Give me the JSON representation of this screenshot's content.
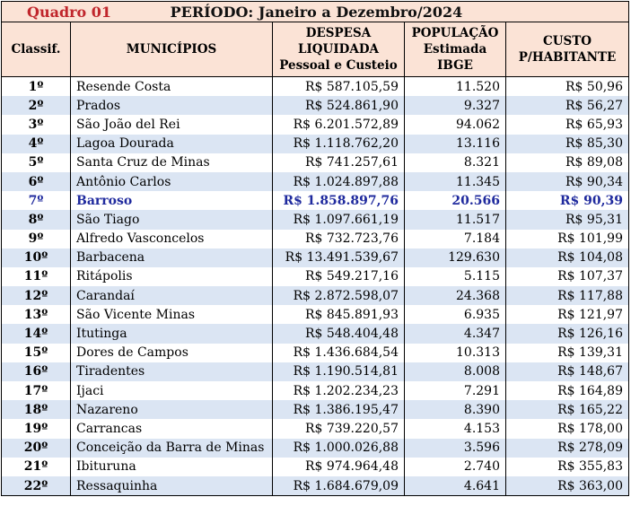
{
  "title": {
    "label": "Quadro 01",
    "period": "PERÍODO: Janeiro a Dezembro/2024"
  },
  "headers": {
    "rank": "Classif.",
    "municipality": "MUNICÍPIOS",
    "expense": [
      "DESPESA",
      "LIQUIDADA",
      "Pessoal e Custeio"
    ],
    "population": [
      "POPULAÇÃO",
      "Estimada",
      "IBGE"
    ],
    "cost": [
      "CUSTO",
      "P/HABITANTE"
    ]
  },
  "highlight_color": "#1f2a9e",
  "rows": [
    {
      "rank": "1º",
      "name": "Resende Costa",
      "expense": "R$ 587.105,59",
      "population": "11.520",
      "cost": "R$ 50,96"
    },
    {
      "rank": "2º",
      "name": "Prados",
      "expense": "R$ 524.861,90",
      "population": "9.327",
      "cost": "R$ 56,27"
    },
    {
      "rank": "3º",
      "name": "São João del Rei",
      "expense": "R$ 6.201.572,89",
      "population": "94.062",
      "cost": "R$ 65,93"
    },
    {
      "rank": "4º",
      "name": "Lagoa Dourada",
      "expense": "R$ 1.118.762,20",
      "population": "13.116",
      "cost": "R$ 85,30"
    },
    {
      "rank": "5º",
      "name": "Santa Cruz de Minas",
      "expense": "R$ 741.257,61",
      "population": "8.321",
      "cost": "R$ 89,08"
    },
    {
      "rank": "6º",
      "name": "Antônio Carlos",
      "expense": "R$ 1.024.897,88",
      "population": "11.345",
      "cost": "R$ 90,34"
    },
    {
      "rank": "7º",
      "name": "Barroso",
      "expense": "R$ 1.858.897,76",
      "population": "20.566",
      "cost": "R$ 90,39",
      "highlight": true
    },
    {
      "rank": "8º",
      "name": "São Tiago",
      "expense": "R$ 1.097.661,19",
      "population": "11.517",
      "cost": "R$ 95,31"
    },
    {
      "rank": "9º",
      "name": "Alfredo Vasconcelos",
      "expense": "R$ 732.723,76",
      "population": "7.184",
      "cost": "R$ 101,99"
    },
    {
      "rank": "10º",
      "name": "Barbacena",
      "expense": "R$ 13.491.539,67",
      "population": "129.630",
      "cost": "R$ 104,08"
    },
    {
      "rank": "11º",
      "name": "Ritápolis",
      "expense": "R$ 549.217,16",
      "population": "5.115",
      "cost": "R$ 107,37"
    },
    {
      "rank": "12º",
      "name": "Carandaí",
      "expense": "R$ 2.872.598,07",
      "population": "24.368",
      "cost": "R$ 117,88"
    },
    {
      "rank": "13º",
      "name": "São Vicente Minas",
      "expense": "R$ 845.891,93",
      "population": "6.935",
      "cost": "R$ 121,97"
    },
    {
      "rank": "14º",
      "name": "Itutinga",
      "expense": "R$ 548.404,48",
      "population": "4.347",
      "cost": "R$ 126,16"
    },
    {
      "rank": "15º",
      "name": "Dores de Campos",
      "expense": "R$ 1.436.684,54",
      "population": "10.313",
      "cost": "R$ 139,31"
    },
    {
      "rank": "16º",
      "name": "Tiradentes",
      "expense": "R$ 1.190.514,81",
      "population": "8.008",
      "cost": "R$ 148,67"
    },
    {
      "rank": "17º",
      "name": "Ijaci",
      "expense": "R$ 1.202.234,23",
      "population": "7.291",
      "cost": "R$ 164,89"
    },
    {
      "rank": "18º",
      "name": "Nazareno",
      "expense": "R$ 1.386.195,47",
      "population": "8.390",
      "cost": "R$ 165,22"
    },
    {
      "rank": "19º",
      "name": "Carrancas",
      "expense": "R$ 739.220,57",
      "population": "4.153",
      "cost": "R$ 178,00"
    },
    {
      "rank": "20º",
      "name": "Conceição da Barra de Minas",
      "expense": "R$ 1.000.026,88",
      "population": "3.596",
      "cost": "R$ 278,09"
    },
    {
      "rank": "21º",
      "name": "Ibituruna",
      "expense": "R$ 974.964,48",
      "population": "2.740",
      "cost": "R$ 355,83"
    },
    {
      "rank": "22º",
      "name": "Ressaquinha",
      "expense": "R$ 1.684.679,09",
      "population": "4.641",
      "cost": "R$ 363,00"
    }
  ]
}
